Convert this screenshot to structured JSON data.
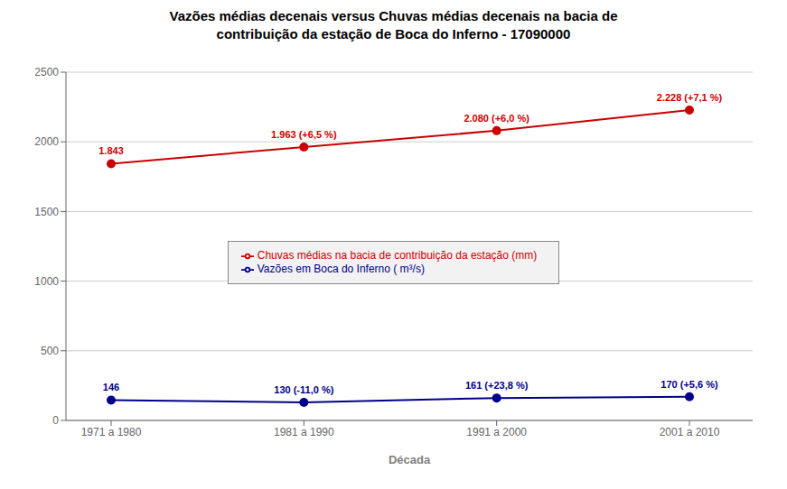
{
  "chart_data": {
    "type": "line",
    "title": "Vazões médias decenais versus Chuvas médias decenais na bacia de\ncontribuição da estação de Boca do Inferno - 17090000",
    "xlabel": "Década",
    "categories": [
      "1971 a 1980",
      "1981 a 1990",
      "1991 a 2000",
      "2001 a 2010"
    ],
    "series": [
      {
        "name": "Vazões em Boca do Inferno ( m³/s)",
        "color": "#00008B",
        "values": [
          146,
          130,
          161,
          170
        ],
        "value_labels": [
          "146",
          "130 (-11,0 %)",
          "161 (+23,8 %)",
          "170 (+5,6 %)"
        ]
      },
      {
        "name": "Chuvas médias na bacia de contribuição da estação (mm)",
        "color": "#CC0000",
        "values": [
          1843,
          1963,
          2080,
          2228
        ],
        "value_labels": [
          "1.843",
          "1.963 (+6,5 %)",
          "2.080 (+6,0 %)",
          "2.228 (+7,1 %)"
        ]
      }
    ],
    "ylim": [
      0,
      2500
    ],
    "yticks": [
      0,
      500,
      1000,
      1500,
      2000,
      2500
    ],
    "grid": true,
    "data_labels": true,
    "marker": "circle",
    "legend": "center"
  }
}
